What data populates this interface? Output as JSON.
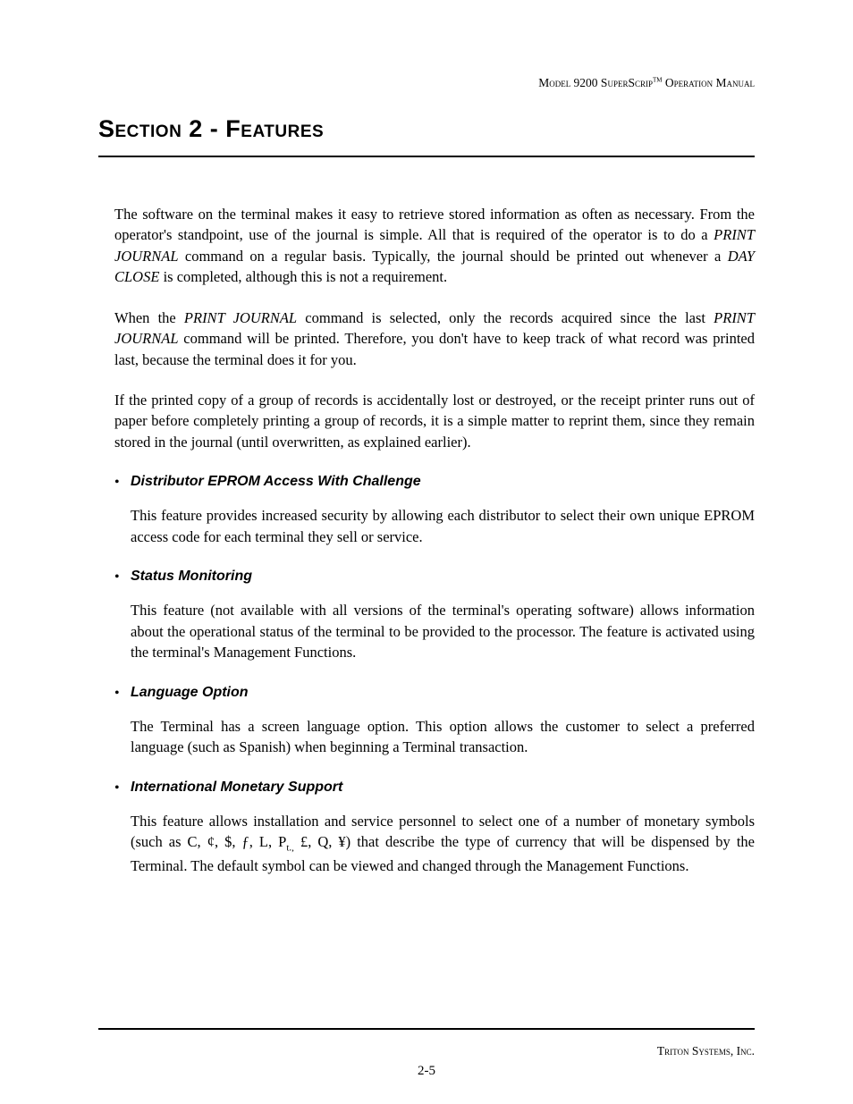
{
  "header": {
    "model": "Model 9200 S",
    "product_part1": "uper",
    "product_part2": "S",
    "product_part3": "crip",
    "tm": "TM",
    "tail": " Operation Manual"
  },
  "title": "Section 2 - Features",
  "paragraphs": {
    "p1a": "The software on the terminal makes it easy to retrieve stored information as often as necessary. From the operator's standpoint, use of the journal is simple.  All that is required of the operator is to do a ",
    "p1b": "PRINT JOURNAL",
    "p1c": " command on a regular basis.  Typically, the journal should be printed out whenever a ",
    "p1d": "DAY CLOSE",
    "p1e": " is completed, although this is not a requirement.",
    "p2a": "When the ",
    "p2b": "PRINT JOURNAL",
    "p2c": " command is selected, only the records acquired since the last ",
    "p2d": "PRINT JOURNAL",
    "p2e": " command will be printed.  Therefore, you don't have to keep track of what record was printed last, because the terminal does it for you.",
    "p3": "If the printed copy of a group of records is accidentally lost or destroyed, or the receipt printer runs out of paper before completely printing a group of records, it is a simple matter to reprint them, since they remain stored in the journal (until overwritten, as explained earlier)."
  },
  "features": [
    {
      "title": "Distributor EPROM Access With Challenge",
      "body": "This feature provides increased security by allowing each distributor to select their own unique EPROM access code for each terminal they sell or service."
    },
    {
      "title": "Status Monitoring",
      "body": "This feature (not available with all versions of the terminal's operating software) allows information about the operational status of the terminal to be provided to the processor.  The feature is activated using the terminal's Management Functions."
    },
    {
      "title": "Language Option",
      "body": "The Terminal has a screen language option.  This option allows the customer to select a preferred language (such as Spanish) when beginning a Terminal transaction."
    }
  ],
  "feature_monetary": {
    "title": "International Monetary Support",
    "body_a": "This feature allows installation and service personnel to select one of a number of monetary symbols (such as C, ¢, $, ƒ, L, P",
    "body_sub": "t.,",
    "body_b": " £, Q, ¥) that describe the type of currency that will be dispensed by the Terminal.  The default symbol can be viewed and changed through the Management Functions."
  },
  "footer": {
    "company": "Triton Systems, Inc.",
    "page": "2-5"
  }
}
